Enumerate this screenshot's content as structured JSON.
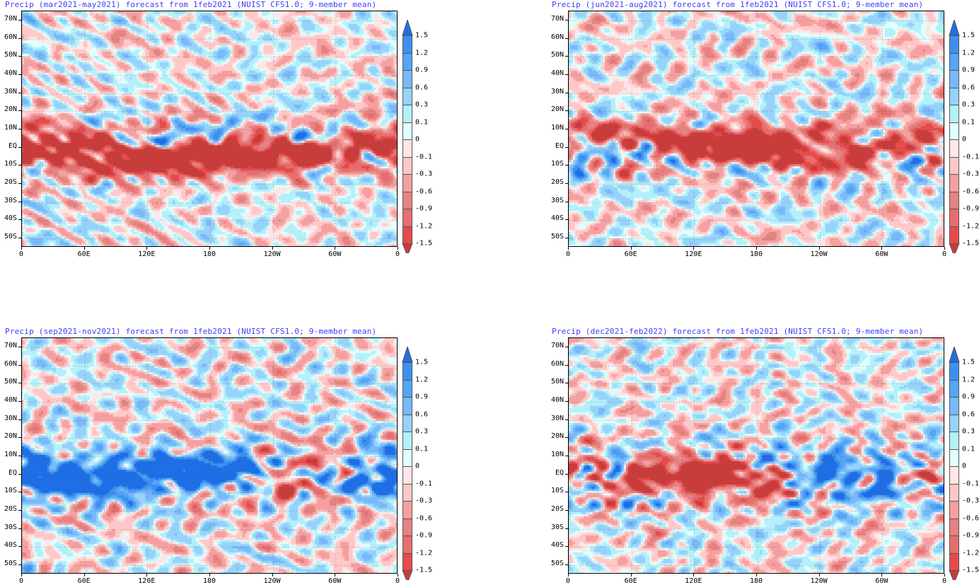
{
  "panels": [
    {
      "title": "Precip (mar2021-may2021) forecast from 1feb2021 (NUIST CFS1.0; 9-member mean)",
      "seed": 1
    },
    {
      "title": "Precip (jun2021-aug2021) forecast from 1feb2021 (NUIST CFS1.0; 9-member mean)",
      "seed": 2
    },
    {
      "title": "Precip (sep2021-nov2021) forecast from 1feb2021 (NUIST CFS1.0; 9-member mean)",
      "seed": 3
    },
    {
      "title": "Precip (dec2021-feb2022) forecast from 1feb2021 (NUIST CFS1.0; 9-member mean)",
      "seed": 4
    }
  ],
  "lat_ticks": [
    {
      "label": "70N",
      "lat": 70
    },
    {
      "label": "60N",
      "lat": 60
    },
    {
      "label": "50N",
      "lat": 50
    },
    {
      "label": "40N",
      "lat": 40
    },
    {
      "label": "30N",
      "lat": 30
    },
    {
      "label": "20N",
      "lat": 20
    },
    {
      "label": "10N",
      "lat": 10
    },
    {
      "label": "EQ",
      "lat": 0
    },
    {
      "label": "10S",
      "lat": -10
    },
    {
      "label": "20S",
      "lat": -20
    },
    {
      "label": "30S",
      "lat": -30
    },
    {
      "label": "40S",
      "lat": -40
    },
    {
      "label": "50S",
      "lat": -50
    }
  ],
  "lon_ticks": [
    {
      "label": "0",
      "lon": 0
    },
    {
      "label": "60E",
      "lon": 60
    },
    {
      "label": "120E",
      "lon": 120
    },
    {
      "label": "180",
      "lon": 180
    },
    {
      "label": "120W",
      "lon": 240
    },
    {
      "label": "60W",
      "lon": 300
    },
    {
      "label": "0",
      "lon": 360
    }
  ],
  "lat_range": [
    -55,
    75
  ],
  "lon_range": [
    0,
    360
  ],
  "colorbar": {
    "labels": [
      "1.5",
      "1.2",
      "0.9",
      "0.6",
      "0.3",
      "0.1",
      "0",
      "-0.1",
      "-0.3",
      "-0.6",
      "-0.9",
      "-1.2",
      "-1.5"
    ],
    "levels": [
      1.5,
      1.2,
      0.9,
      0.6,
      0.3,
      0.1,
      0,
      -0.1,
      -0.3,
      -0.6,
      -0.9,
      -1.2,
      -1.5
    ],
    "colors": [
      "#1e6ee6",
      "#3c91f0",
      "#55a5f5",
      "#78b9fa",
      "#96d2fa",
      "#b4f0fa",
      "#e1ffff",
      "#ffe6e6",
      "#ffc8c8",
      "#f5a0a0",
      "#e68282",
      "#e66e6e",
      "#e64b4b",
      "#c83c3c"
    ]
  }
}
